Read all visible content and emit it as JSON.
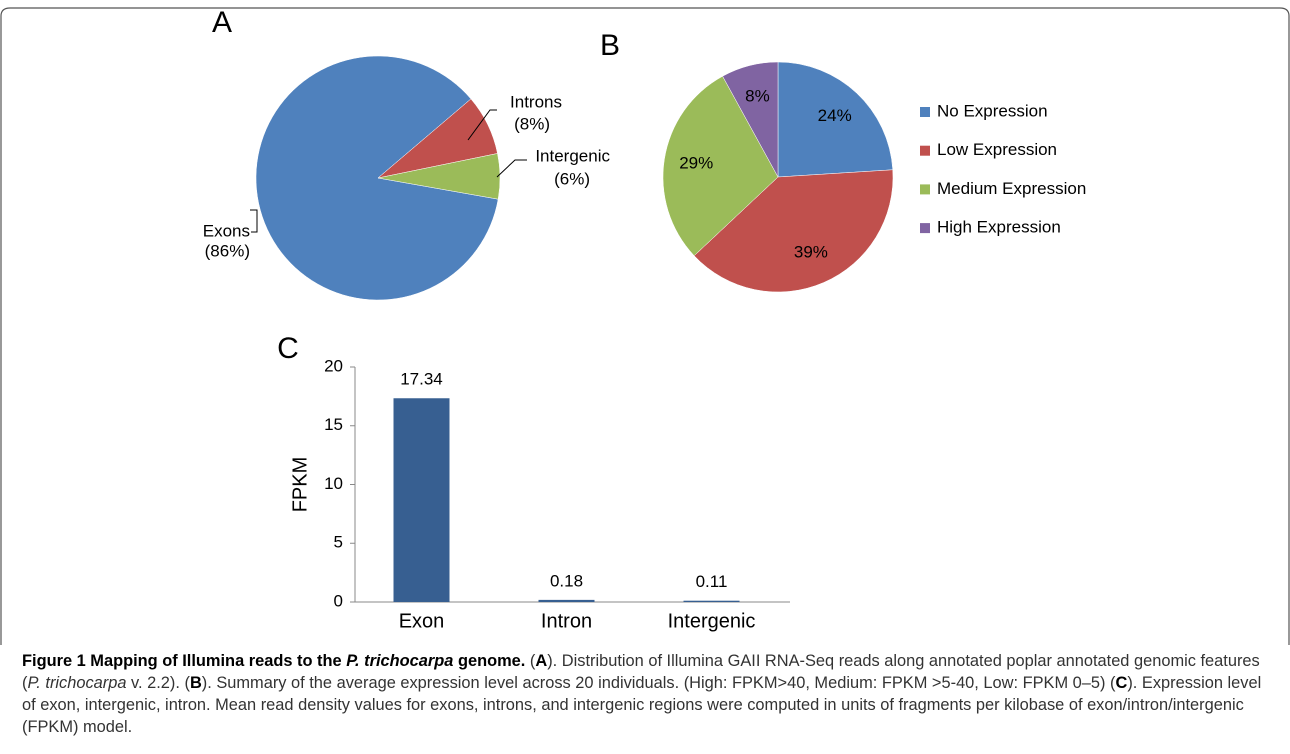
{
  "chart_data": [
    {
      "type": "pie",
      "title": "A",
      "categories": [
        "Exons",
        "Introns",
        "Intergenic"
      ],
      "values": [
        86,
        8,
        6
      ],
      "value_labels": [
        "(86%)",
        "(8%)",
        "(6%)"
      ],
      "colors": [
        "#4f81bd",
        "#c0504d",
        "#9bbb59"
      ]
    },
    {
      "type": "pie",
      "title": "B",
      "categories": [
        "No Expression",
        "Low Expression",
        "Medium Expression",
        "High Expression"
      ],
      "values": [
        24,
        39,
        29,
        8
      ],
      "value_labels": [
        "24%",
        "39%",
        "29%",
        "8%"
      ],
      "colors": [
        "#4f81bd",
        "#c0504d",
        "#9bbb59",
        "#8064a2"
      ],
      "legend": "right"
    },
    {
      "type": "bar",
      "title": "C",
      "ylabel": "FPKM",
      "categories": [
        "Exon",
        "Intron",
        "Intergenic"
      ],
      "values": [
        17.34,
        0.18,
        0.11
      ],
      "color": "#375f91",
      "ylim": [
        0,
        20
      ],
      "yticks": [
        0,
        5,
        10,
        15,
        20
      ],
      "grid": false
    }
  ],
  "caption": {
    "runs": [
      "Figure 1 Mapping of Illumina reads to the ",
      "P. trichocarpa",
      " genome.",
      " (",
      "A",
      "). Distribution of Illumina GAII RNA-Seq reads along annotated poplar annotated genomic features (",
      "P. trichocarpa",
      " v. 2.2). (",
      "B",
      "). Summary of the average expression level across 20 individuals. (High: FPKM>40, Medium: FPKM >5-40, Low: FPKM 0–5) (",
      "C",
      "). Expression level of exon, intergenic, intron. Mean read density values for exons, introns, and intergenic regions were computed in units of fragments per kilobase of exon/intron/intergenic (FPKM) model."
    ]
  }
}
